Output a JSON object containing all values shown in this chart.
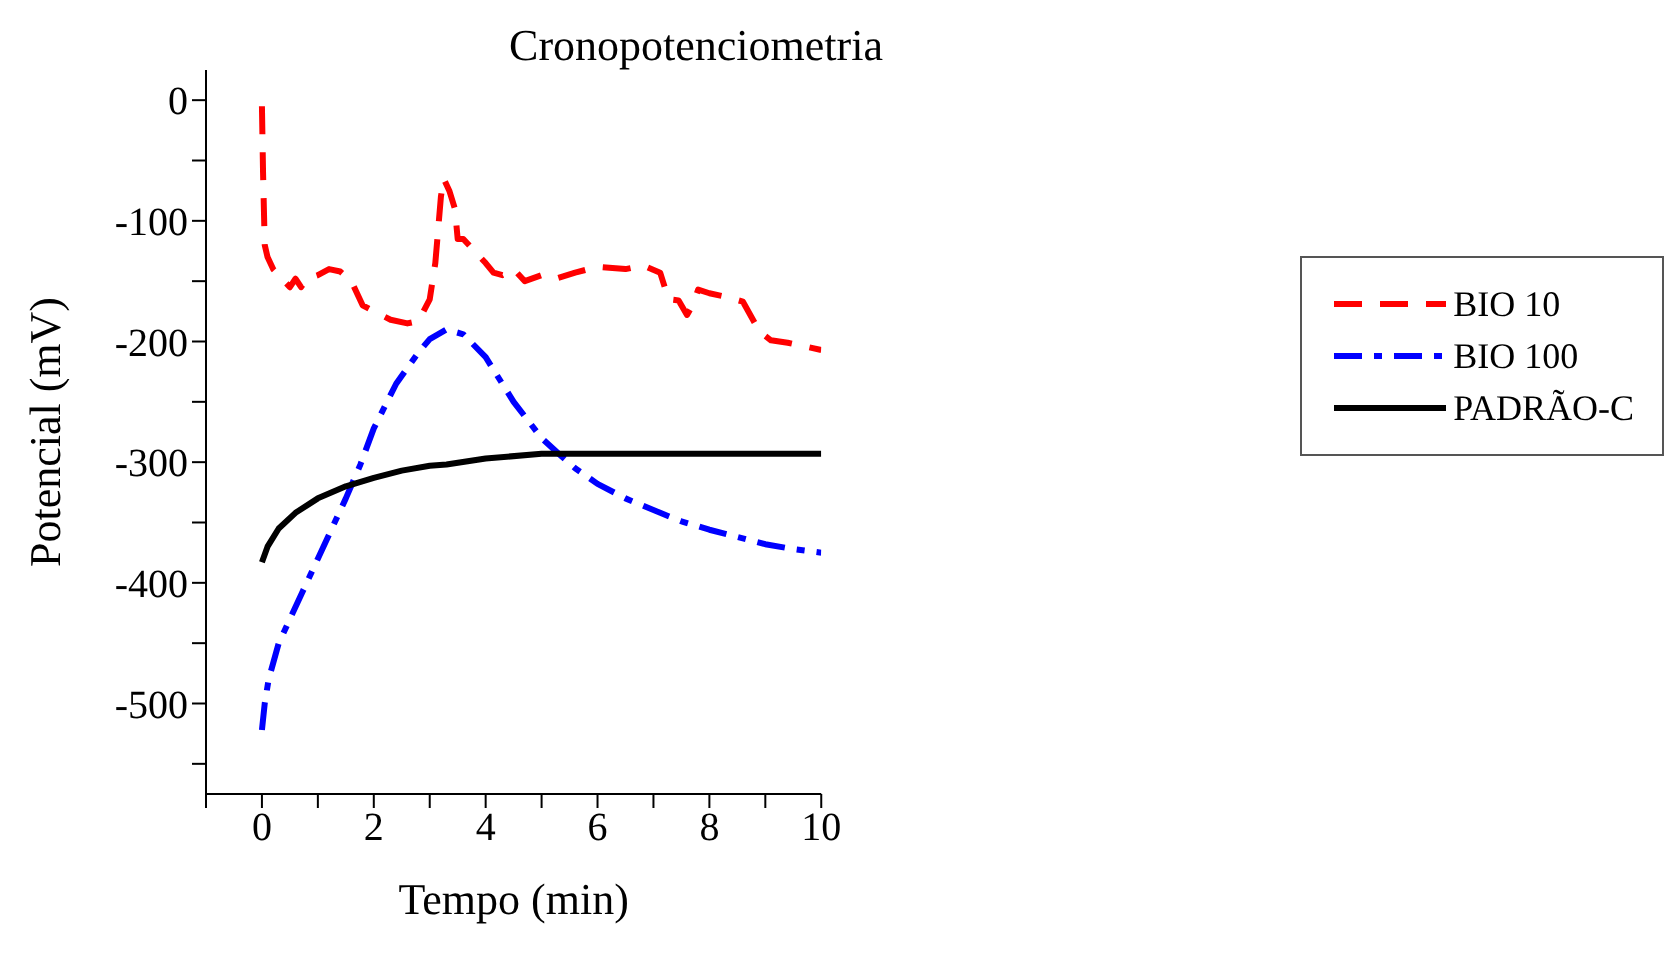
{
  "chart_data": {
    "type": "line",
    "title": "Cronopotenciometria",
    "xlabel": "Tempo (min)",
    "ylabel": "Potencial (mV)",
    "xlim": [
      -1,
      10
    ],
    "ylim": [
      -575,
      25
    ],
    "xticks": [
      {
        "value": -1,
        "label": null
      },
      0,
      {
        "value": 1,
        "label": null
      },
      2,
      {
        "value": 3,
        "label": null
      },
      4,
      {
        "value": 5,
        "label": null
      },
      6,
      {
        "value": 7,
        "label": null
      },
      8,
      {
        "value": 9,
        "label": null
      },
      10
    ],
    "yticks": [
      {
        "value": -550,
        "label": null
      },
      -500,
      {
        "value": -450,
        "label": null
      },
      -400,
      {
        "value": -350,
        "label": null
      },
      -300,
      {
        "value": -250,
        "label": null
      },
      -200,
      {
        "value": -150,
        "label": null
      },
      -100,
      {
        "value": -50,
        "label": null
      },
      0
    ],
    "grid": false,
    "legend": "right",
    "marker": "none",
    "series": [
      {
        "name": "BIO 10",
        "color": "#ff0000",
        "line_style": "dashed",
        "x": [
          0,
          0.02,
          0.05,
          0.1,
          0.2,
          0.4,
          0.5,
          0.6,
          0.7,
          0.8,
          1.0,
          1.2,
          1.4,
          1.6,
          1.8,
          2.0,
          2.3,
          2.6,
          2.8,
          3.0,
          3.1,
          3.2,
          3.25,
          3.35,
          3.45,
          3.5,
          3.6,
          3.8,
          4.0,
          4.14,
          4.3,
          4.5,
          4.7,
          5.0,
          5.25,
          5.6,
          6.0,
          6.5,
          6.82,
          7.12,
          7.27,
          7.45,
          7.6,
          7.7,
          7.8,
          8.0,
          8.3,
          8.6,
          8.9,
          9.1,
          9.4,
          9.7,
          10
        ],
        "values": [
          -5,
          -60,
          -120,
          -130,
          -140,
          -150,
          -155,
          -148,
          -155,
          -148,
          -145,
          -140,
          -142,
          -150,
          -170,
          -175,
          -182,
          -185,
          -183,
          -165,
          -135,
          -80,
          -65,
          -75,
          -90,
          -115,
          -115,
          -125,
          -135,
          -143,
          -145,
          -140,
          -150,
          -145,
          -148,
          -143,
          -138,
          -140,
          -137,
          -143,
          -165,
          -166,
          -178,
          -170,
          -157,
          -160,
          -163,
          -167,
          -192,
          -199,
          -201,
          -204,
          -207
        ]
      },
      {
        "name": "BIO 100",
        "color": "#0000ff",
        "line_style": "dashdot",
        "x": [
          0,
          0.05,
          0.12,
          0.3,
          0.72,
          1.0,
          1.5,
          1.76,
          2.0,
          2.4,
          2.8,
          3.0,
          3.3,
          3.6,
          4.0,
          4.5,
          5.0,
          5.33,
          5.6,
          6.0,
          6.5,
          7.12,
          7.5,
          8.0,
          8.5,
          9.0,
          9.5,
          10
        ],
        "values": [
          -522,
          -500,
          -480,
          -450,
          -408,
          -380,
          -330,
          -302,
          -272,
          -235,
          -209,
          -198,
          -190,
          -194,
          -213,
          -250,
          -280,
          -294,
          -305,
          -318,
          -330,
          -342,
          -349,
          -356,
          -362,
          -368,
          -372,
          -375
        ]
      },
      {
        "name": "PADRÃO-C",
        "color": "#000000",
        "line_style": "solid",
        "x": [
          0,
          0.1,
          0.3,
          0.6,
          1.0,
          1.5,
          2.0,
          2.5,
          3.0,
          3.3,
          4.0,
          5.0,
          6.0,
          8.0,
          10
        ],
        "values": [
          -383,
          -370,
          -355,
          -342,
          -330,
          -320,
          -313,
          -307,
          -303,
          -302,
          -297,
          -293,
          -293,
          -293,
          -293
        ]
      }
    ]
  }
}
